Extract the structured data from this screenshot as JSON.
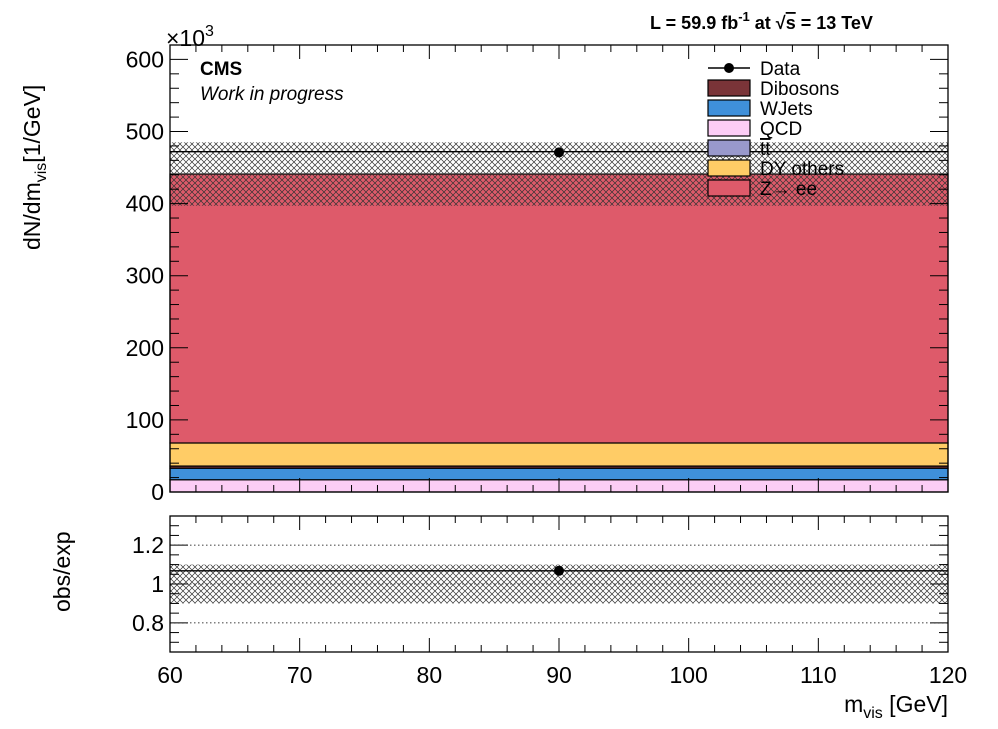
{
  "header": {
    "cms_label": "CMS",
    "cms_sublabel": "Work in progress",
    "lumi_main": "L = 59.9 fb",
    "lumi_sup": "-1",
    "lumi_at": " at  ",
    "lumi_sqrt": "√",
    "lumi_s": "s",
    "lumi_energy": " = 13 TeV"
  },
  "chart_data": [
    {
      "type": "bar",
      "stacked": true,
      "xlim": [
        60,
        120
      ],
      "ylim": [
        0,
        620000
      ],
      "ylabel_parts": {
        "main": "dN/dm",
        "sub": "vis",
        "unit": "[1/GeV]"
      },
      "y_exponent": {
        "times": "×10",
        "sup": "3"
      },
      "yticks": [
        0,
        100,
        200,
        300,
        400,
        500,
        600
      ],
      "ytick_labels": [
        "0",
        "100",
        "200",
        "300",
        "400",
        "500",
        "600"
      ],
      "bin": [
        60,
        120
      ],
      "series": [
        {
          "name": "QCD",
          "color": "#fccdf5",
          "value": 17000
        },
        {
          "name": "WJets",
          "color": "#3f90da",
          "value": 16000
        },
        {
          "name": "Dibosons",
          "color": "#7a3438",
          "value": 3000
        },
        {
          "name": "tt",
          "color": "#9999cc",
          "value": 0
        },
        {
          "name": "DY others",
          "color": "#ffcc66",
          "value": 32000
        },
        {
          "name": "Z→ ee",
          "color": "#de5a6a",
          "value": 373000
        }
      ],
      "mc_total": 441000,
      "uncertainty_band": [
        397000,
        485000
      ],
      "data_point": {
        "x": 90,
        "y": 471000,
        "yerr": 700
      },
      "data_line": 472000,
      "legend": {
        "position": "top-right",
        "entries": [
          {
            "label": "Data",
            "kind": "marker"
          },
          {
            "label": "Dibosons",
            "color": "#7a3438"
          },
          {
            "label": "WJets",
            "color": "#3f90da"
          },
          {
            "label": "QCD",
            "color": "#fccdf5"
          },
          {
            "label": "tt",
            "color": "#9999cc",
            "overline": true
          },
          {
            "label": "DY others",
            "color": "#ffcc66"
          },
          {
            "label": "Z→ ee",
            "color": "#de5a6a"
          }
        ]
      }
    },
    {
      "type": "scatter",
      "xlim": [
        60,
        120
      ],
      "ylim": [
        0.65,
        1.35
      ],
      "ylabel": "obs/exp",
      "yticks": [
        0.8,
        1.0,
        1.2
      ],
      "ytick_labels": [
        "0.8",
        "1",
        "1.2"
      ],
      "gridlines": [
        0.8,
        1.0,
        1.2
      ],
      "xticks": [
        60,
        70,
        80,
        90,
        100,
        110,
        120
      ],
      "xtick_labels": [
        "60",
        "70",
        "80",
        "90",
        "100",
        "110",
        "120"
      ],
      "xlabel_parts": {
        "main": "m",
        "sub": "vis",
        "unit": " [GeV]"
      },
      "ratio_line": 1.068,
      "band": [
        0.9,
        1.1
      ],
      "point": {
        "x": 90,
        "y": 1.068,
        "yerr": 0.002
      }
    }
  ]
}
